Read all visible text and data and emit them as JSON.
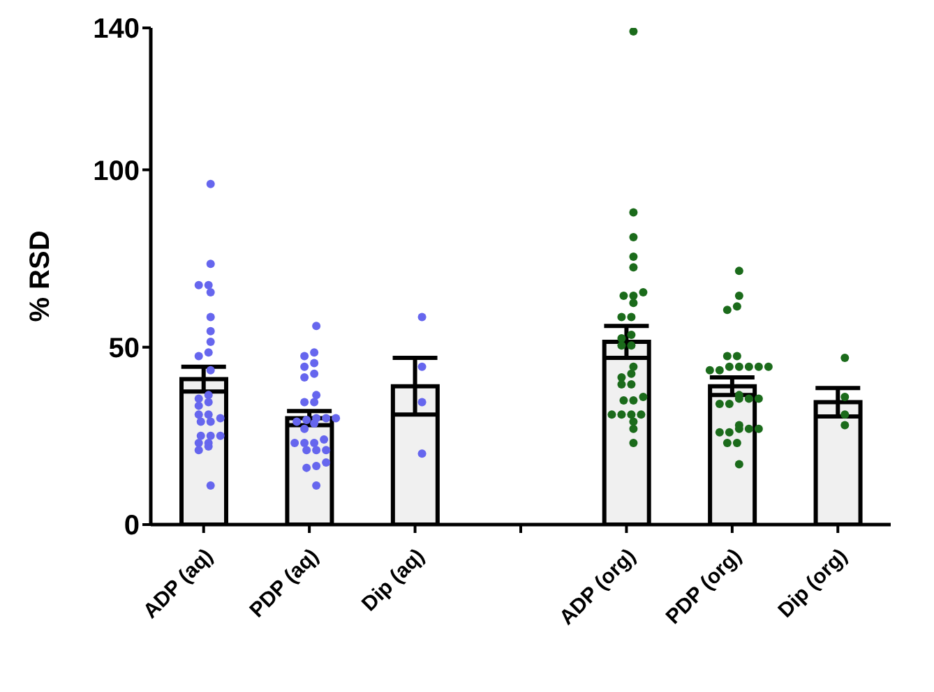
{
  "chart_data": {
    "type": "bar",
    "ylabel": "% RSD",
    "categories": [
      "ADP (aq)",
      "PDP (aq)",
      "Dip (aq)",
      null,
      "ADP (org)",
      "PDP (org)",
      "Dip (org)"
    ],
    "series": [
      {
        "type": "bar",
        "color": "#f0f0f0",
        "values": [
          41,
          30,
          39,
          null,
          51.5,
          39,
          34.5
        ],
        "errors": [
          3.5,
          2,
          8,
          null,
          4.5,
          2.5,
          4
        ]
      },
      {
        "type": "scatter",
        "color": "#6666ee",
        "x": [
          "ADP (aq)",
          "ADP (aq)",
          "ADP (aq)",
          "ADP (aq)",
          "ADP (aq)",
          "ADP (aq)",
          "ADP (aq)",
          "ADP (aq)",
          "ADP (aq)",
          "ADP (aq)",
          "ADP (aq)",
          "ADP (aq)",
          "ADP (aq)",
          "ADP (aq)",
          "ADP (aq)",
          "ADP (aq)",
          "ADP (aq)",
          "ADP (aq)",
          "ADP (aq)",
          "ADP (aq)",
          "ADP (aq)",
          "ADP (aq)",
          "ADP (aq)",
          "ADP (aq)",
          "ADP (aq)",
          "ADP (aq)",
          "ADP (aq)",
          "ADP (aq)",
          "PDP (aq)",
          "PDP (aq)",
          "PDP (aq)",
          "PDP (aq)",
          "PDP (aq)",
          "PDP (aq)",
          "PDP (aq)",
          "PDP (aq)",
          "PDP (aq)",
          "PDP (aq)",
          "PDP (aq)",
          "PDP (aq)",
          "PDP (aq)",
          "PDP (aq)",
          "PDP (aq)",
          "PDP (aq)",
          "PDP (aq)",
          "PDP (aq)",
          "PDP (aq)",
          "PDP (aq)",
          "PDP (aq)",
          "PDP (aq)",
          "PDP (aq)",
          "PDP (aq)",
          "PDP (aq)",
          "PDP (aq)",
          "PDP (aq)",
          "PDP (aq)",
          "Dip (aq)",
          "Dip (aq)",
          "Dip (aq)",
          "Dip (aq)"
        ],
        "values": [
          96,
          73.5,
          67.5,
          67.5,
          65.5,
          58.5,
          54.5,
          51.5,
          48.5,
          47.5,
          43.5,
          36.5,
          35.5,
          34.5,
          33.5,
          31,
          31,
          30,
          29,
          29,
          25,
          25,
          25,
          23,
          23,
          22,
          21,
          11,
          56,
          48.5,
          47.5,
          45.5,
          44.5,
          42.5,
          41.5,
          36.5,
          34.5,
          34.5,
          30,
          30,
          30,
          29,
          28.5,
          27,
          24,
          23,
          23,
          23,
          21,
          21,
          21,
          17.5,
          16.5,
          16,
          11,
          29.5,
          58.5,
          44.5,
          34.5,
          20
        ]
      },
      {
        "type": "scatter",
        "color": "#1b6b1b",
        "x": [
          "ADP (org)",
          "ADP (org)",
          "ADP (org)",
          "ADP (org)",
          "ADP (org)",
          "ADP (org)",
          "ADP (org)",
          "ADP (org)",
          "ADP (org)",
          "ADP (org)",
          "ADP (org)",
          "ADP (org)",
          "ADP (org)",
          "ADP (org)",
          "ADP (org)",
          "ADP (org)",
          "ADP (org)",
          "ADP (org)",
          "ADP (org)",
          "ADP (org)",
          "ADP (org)",
          "ADP (org)",
          "ADP (org)",
          "ADP (org)",
          "ADP (org)",
          "ADP (org)",
          "ADP (org)",
          "ADP (org)",
          "ADP (org)",
          "ADP (org)",
          "PDP (org)",
          "PDP (org)",
          "PDP (org)",
          "PDP (org)",
          "PDP (org)",
          "PDP (org)",
          "PDP (org)",
          "PDP (org)",
          "PDP (org)",
          "PDP (org)",
          "PDP (org)",
          "PDP (org)",
          "PDP (org)",
          "PDP (org)",
          "PDP (org)",
          "PDP (org)",
          "PDP (org)",
          "PDP (org)",
          "PDP (org)",
          "PDP (org)",
          "PDP (org)",
          "PDP (org)",
          "PDP (org)",
          "PDP (org)",
          "PDP (org)",
          "PDP (org)",
          "PDP (org)",
          "PDP (org)",
          "Dip (org)",
          "Dip (org)",
          "Dip (org)",
          "Dip (org)"
        ],
        "values": [
          139,
          88,
          81,
          75.5,
          72.5,
          65.5,
          64.5,
          64.5,
          62.5,
          58.5,
          58.5,
          53.5,
          52.5,
          50.5,
          50.5,
          44.5,
          42.5,
          41.5,
          39.5,
          39.5,
          36,
          35,
          35,
          31,
          31,
          31,
          31,
          29,
          27,
          23,
          71.5,
          64.5,
          61.5,
          60.5,
          47.5,
          47.5,
          44.5,
          44.5,
          44.5,
          44.5,
          44.5,
          43.5,
          43.5,
          36.5,
          35.5,
          35.5,
          35.5,
          34,
          34,
          28,
          27,
          27,
          27,
          26,
          26,
          23,
          23,
          17,
          47,
          36,
          31,
          28
        ]
      }
    ],
    "ylim": [
      0,
      140
    ],
    "yticks": [
      0,
      50,
      100,
      140
    ],
    "legend": false,
    "grid": false,
    "marker": "circle"
  }
}
